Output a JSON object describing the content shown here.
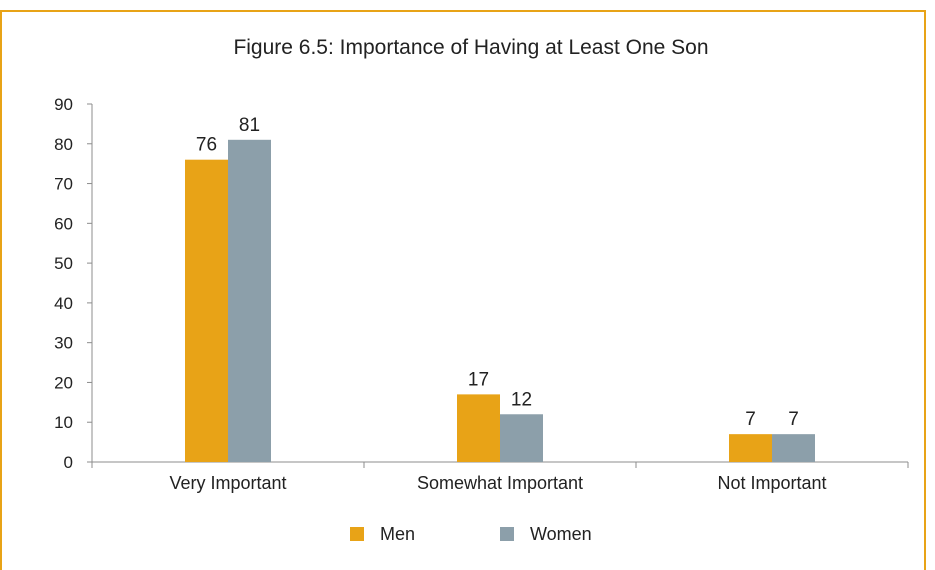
{
  "chart_data": {
    "type": "bar",
    "title": "Figure 6.5: Importance of Having at Least One Son",
    "xlabel": "",
    "ylabel": "",
    "categories": [
      "Very Important",
      "Somewhat Important",
      "Not Important"
    ],
    "series": [
      {
        "name": "Men",
        "values": [
          76,
          17,
          7
        ],
        "labels": [
          "76",
          "17",
          "7"
        ],
        "color": "#E8A317"
      },
      {
        "name": "Women",
        "values": [
          81,
          12,
          7
        ],
        "labels": [
          "81",
          "12",
          "7"
        ],
        "color": "#8C9FAA"
      }
    ],
    "yticks": [
      "0",
      "10",
      "20",
      "30",
      "40",
      "50",
      "60",
      "70",
      "80",
      "90"
    ],
    "ylim": [
      0,
      90
    ],
    "grid": false,
    "legend_position": "bottom",
    "frame_color": "#E8A317",
    "axis_color": "#8C8C8C"
  }
}
